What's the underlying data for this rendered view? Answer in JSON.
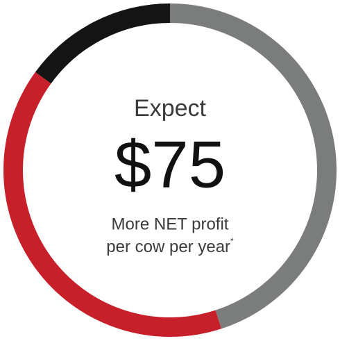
{
  "chart_data": {
    "type": "donut",
    "values": [
      45,
      40,
      15
    ],
    "colors": [
      "#7b7d7c",
      "#c8202a",
      "#141414"
    ],
    "center_text": [
      "Expect",
      "$75",
      "More NET profit",
      "per cow per year"
    ],
    "footnote_mark": "*"
  }
}
